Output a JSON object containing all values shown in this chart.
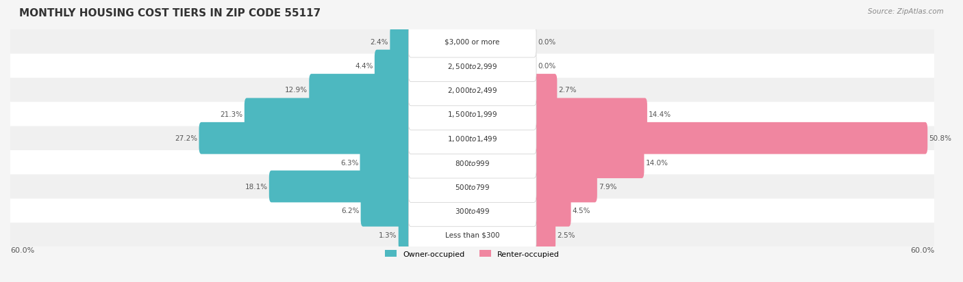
{
  "title": "MONTHLY HOUSING COST TIERS IN ZIP CODE 55117",
  "source": "Source: ZipAtlas.com",
  "categories": [
    "Less than $300",
    "$300 to $499",
    "$500 to $799",
    "$800 to $999",
    "$1,000 to $1,499",
    "$1,500 to $1,999",
    "$2,000 to $2,499",
    "$2,500 to $2,999",
    "$3,000 or more"
  ],
  "owner_values": [
    1.3,
    6.2,
    18.1,
    6.3,
    27.2,
    21.3,
    12.9,
    4.4,
    2.4
  ],
  "renter_values": [
    2.5,
    4.5,
    7.9,
    14.0,
    50.8,
    14.4,
    2.7,
    0.0,
    0.0
  ],
  "owner_color": "#4db8c0",
  "renter_color": "#f086a0",
  "axis_limit": 60.0,
  "background_color": "#f5f5f5",
  "row_bg_color": "#f0f0f0",
  "row_alt_color": "#ffffff"
}
